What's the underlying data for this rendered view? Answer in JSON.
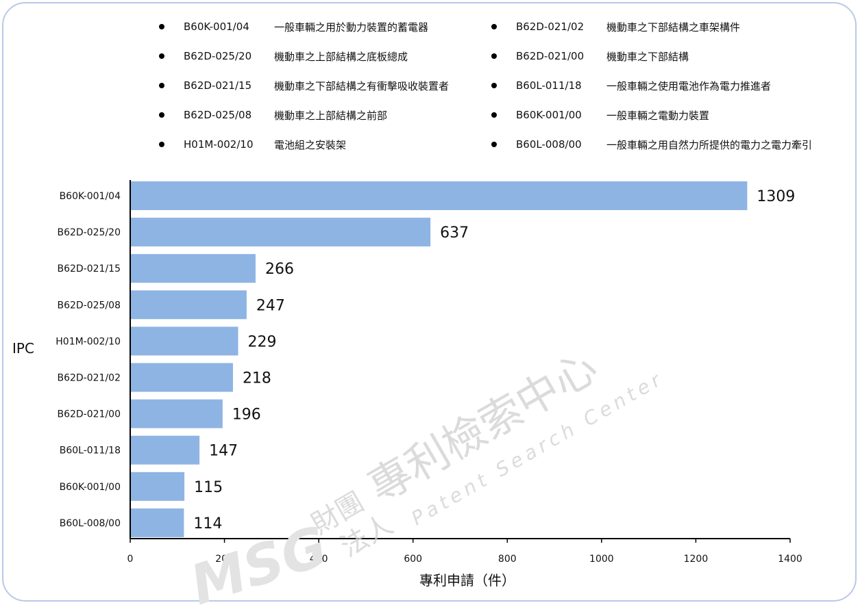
{
  "legend": [
    {
      "code": "B60K-001/04",
      "desc": "一般車輛之用於動力裝置的蓄電器"
    },
    {
      "code": "B62D-021/02",
      "desc": "機動車之下部結構之車架構件"
    },
    {
      "code": "B62D-025/20",
      "desc": "機動車之上部結構之底板總成"
    },
    {
      "code": "B62D-021/00",
      "desc": "機動車之下部結構"
    },
    {
      "code": "B62D-021/15",
      "desc": "機動車之下部結構之有衝擊吸收裝置者"
    },
    {
      "code": "B60L-011/18",
      "desc": "一般車輛之使用電池作為電力推進者"
    },
    {
      "code": "B62D-025/08",
      "desc": "機動車之上部結構之前部"
    },
    {
      "code": "B60K-001/00",
      "desc": "一般車輛之電動力裝置"
    },
    {
      "code": "H01M-002/10",
      "desc": "電池組之安裝架"
    },
    {
      "code": "B60L-008/00",
      "desc": "一般車輛之用自然力所提供的電力之電力牽引"
    }
  ],
  "chart_data": {
    "type": "bar",
    "orientation": "horizontal",
    "categories": [
      "B60K-001/04",
      "B62D-025/20",
      "B62D-021/15",
      "B62D-025/08",
      "H01M-002/10",
      "B62D-021/02",
      "B62D-021/00",
      "B60L-011/18",
      "B60K-001/00",
      "B60L-008/00"
    ],
    "values": [
      1309,
      637,
      266,
      247,
      229,
      218,
      196,
      147,
      115,
      114
    ],
    "xlabel": "專利申請（件）",
    "ylabel": "IPC",
    "xlim": [
      0,
      1400
    ],
    "xticks": [
      "0",
      "200",
      "400",
      "600",
      "800",
      "1000",
      "1200",
      "1400"
    ],
    "bar_color": "#8eb4e3",
    "grid": false,
    "data_labels": true
  },
  "watermark": {
    "org_cn": "財團",
    "org_cn2": "法人",
    "name_cn": "專利檢索中心",
    "name_en": "Patent Search Center",
    "logo": "MSG",
    "color": "#d9d9d9"
  }
}
